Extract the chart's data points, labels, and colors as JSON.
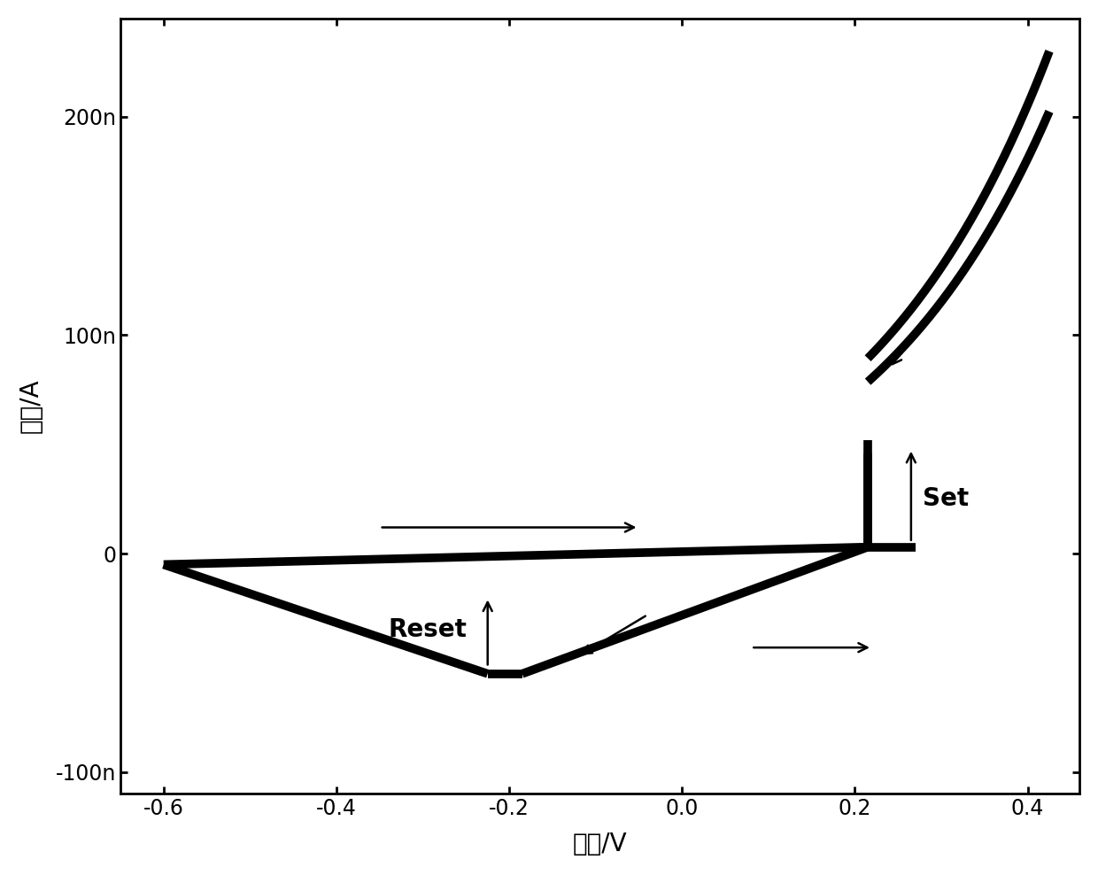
{
  "title": "",
  "xlabel": "电压/V",
  "ylabel": "电流/A",
  "xlim": [
    -0.65,
    0.46
  ],
  "ylim": [
    -1.1e-07,
    2.45e-07
  ],
  "xticks": [
    -0.6,
    -0.4,
    -0.2,
    0.0,
    0.2,
    0.4
  ],
  "yticks": [
    -1e-07,
    0,
    1e-07,
    2e-07
  ],
  "ytick_labels": [
    "-100n",
    "0",
    "100n",
    "200n"
  ],
  "xtick_labels": [
    "-0.6",
    "-0.4",
    "-0.2",
    "0.0",
    "0.2",
    "0.4"
  ],
  "line_color": "#000000",
  "line_width": 7,
  "background_color": "#ffffff",
  "label_fontsize": 20,
  "tick_fontsize": 17,
  "annotation_fontsize": 20
}
